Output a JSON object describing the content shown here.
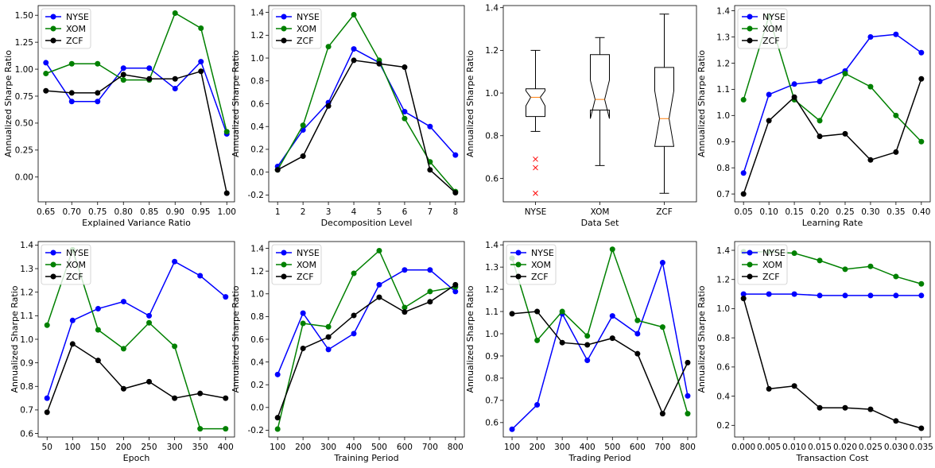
{
  "colors": {
    "NYSE": "#0000ff",
    "XOM": "#008000",
    "ZCF": "#000000",
    "outlier": "#ff0000",
    "median": "#ff7f0e"
  },
  "chart_data": [
    {
      "type": "line",
      "xlabel": "Explained Variance Ratio",
      "ylabel": "Annualized Sharpe Ratio",
      "x": [
        0.65,
        0.7,
        0.75,
        0.8,
        0.85,
        0.9,
        0.95,
        1.0
      ],
      "xticks": [
        "0.65",
        "0.70",
        "0.75",
        "0.80",
        "0.85",
        "0.90",
        "0.95",
        "1.00"
      ],
      "xlim": [
        0.635,
        1.015
      ],
      "ylim": [
        -0.23,
        1.59
      ],
      "yticks": [
        "0.00",
        "0.25",
        "0.50",
        "0.75",
        "1.00",
        "1.25",
        "1.50"
      ],
      "ytick_values": [
        0,
        0.25,
        0.5,
        0.75,
        1.0,
        1.25,
        1.5
      ],
      "legend": [
        "NYSE",
        "XOM",
        "ZCF"
      ],
      "series": [
        {
          "name": "NYSE",
          "values": [
            1.06,
            0.7,
            0.7,
            1.01,
            1.01,
            0.82,
            1.07,
            0.4
          ]
        },
        {
          "name": "XOM",
          "values": [
            0.96,
            1.05,
            1.05,
            0.9,
            0.9,
            1.52,
            1.38,
            0.42
          ]
        },
        {
          "name": "ZCF",
          "values": [
            0.8,
            0.78,
            0.78,
            0.95,
            0.91,
            0.91,
            0.98,
            -0.15
          ]
        }
      ]
    },
    {
      "type": "line",
      "xlabel": "Decomposition Level",
      "ylabel": "Annualized Sharpe Ratio",
      "x": [
        1,
        2,
        3,
        4,
        5,
        6,
        7,
        8
      ],
      "xticks": [
        "1",
        "2",
        "3",
        "4",
        "5",
        "6",
        "7",
        "8"
      ],
      "xlim": [
        0.65,
        8.35
      ],
      "ylim": [
        -0.26,
        1.46
      ],
      "yticks": [
        "-0.2",
        "0.0",
        "0.2",
        "0.4",
        "0.6",
        "0.8",
        "1.0",
        "1.2",
        "1.4"
      ],
      "ytick_values": [
        -0.2,
        0,
        0.2,
        0.4,
        0.6,
        0.8,
        1.0,
        1.2,
        1.4
      ],
      "legend": [
        "NYSE",
        "XOM",
        "ZCF"
      ],
      "series": [
        {
          "name": "NYSE",
          "values": [
            0.05,
            0.37,
            0.61,
            1.08,
            0.96,
            0.53,
            0.4,
            0.15
          ]
        },
        {
          "name": "XOM",
          "values": [
            0.02,
            0.41,
            1.1,
            1.38,
            0.98,
            0.47,
            0.09,
            -0.17
          ]
        },
        {
          "name": "ZCF",
          "values": [
            0.02,
            0.14,
            0.58,
            0.98,
            0.95,
            0.92,
            0.02,
            -0.18
          ]
        }
      ]
    },
    {
      "type": "box",
      "xlabel": "Data Set",
      "ylabel": "Annualized Sharpe Ratio",
      "categories": [
        "NYSE",
        "XOM",
        "ZCF"
      ],
      "xlim": [
        0.5,
        3.5
      ],
      "ylim": [
        0.49,
        1.41
      ],
      "yticks": [
        "0.6",
        "0.8",
        "1.0",
        "1.2",
        "1.4"
      ],
      "ytick_values": [
        0.6,
        0.8,
        1.0,
        1.2,
        1.4
      ],
      "boxes": [
        {
          "name": "NYSE",
          "whisker_low": 0.82,
          "q1": 0.89,
          "median": 0.98,
          "q3": 1.02,
          "whisker_high": 1.2,
          "notch_low": 0.94,
          "notch_high": 1.01,
          "outliers": [
            0.69,
            0.65,
            0.53
          ]
        },
        {
          "name": "XOM",
          "whisker_low": 0.66,
          "q1": 0.92,
          "median": 0.97,
          "q3": 1.18,
          "whisker_high": 1.26,
          "notch_low": 0.88,
          "notch_high": 1.06,
          "outliers": []
        },
        {
          "name": "ZCF",
          "whisker_low": 0.53,
          "q1": 0.75,
          "median": 0.88,
          "q3": 1.12,
          "whisker_high": 1.37,
          "notch_low": 0.75,
          "notch_high": 1.01,
          "outliers": []
        }
      ]
    },
    {
      "type": "line",
      "xlabel": "Learning Rate",
      "ylabel": "Annualized Sharpe Ratio",
      "x": [
        0.05,
        0.1,
        0.15,
        0.2,
        0.25,
        0.3,
        0.35,
        0.4
      ],
      "xticks": [
        "0.05",
        "0.10",
        "0.15",
        "0.20",
        "0.25",
        "0.30",
        "0.35",
        "0.40"
      ],
      "xlim": [
        0.0325,
        0.4175
      ],
      "ylim": [
        0.67,
        1.42
      ],
      "yticks": [
        "0.7",
        "0.8",
        "0.9",
        "1.0",
        "1.1",
        "1.2",
        "1.3",
        "1.4"
      ],
      "ytick_values": [
        0.7,
        0.8,
        0.9,
        1.0,
        1.1,
        1.2,
        1.3,
        1.4
      ],
      "legend": [
        "NYSE",
        "XOM",
        "ZCF"
      ],
      "series": [
        {
          "name": "NYSE",
          "values": [
            0.78,
            1.08,
            1.12,
            1.13,
            1.17,
            1.3,
            1.31,
            1.24
          ]
        },
        {
          "name": "XOM",
          "values": [
            1.06,
            1.38,
            1.06,
            0.98,
            1.16,
            1.11,
            1.0,
            0.9
          ]
        },
        {
          "name": "ZCF",
          "values": [
            0.7,
            0.98,
            1.07,
            0.92,
            0.93,
            0.83,
            0.86,
            1.14
          ]
        }
      ]
    },
    {
      "type": "line",
      "xlabel": "Epoch",
      "ylabel": "Annualized Sharpe Ratio",
      "x": [
        50,
        100,
        150,
        200,
        250,
        300,
        350,
        400
      ],
      "xticks": [
        "50",
        "100",
        "150",
        "200",
        "250",
        "300",
        "350",
        "400"
      ],
      "xlim": [
        32.5,
        417.5
      ],
      "ylim": [
        0.585,
        1.415
      ],
      "yticks": [
        "0.6",
        "0.7",
        "0.8",
        "0.9",
        "1.0",
        "1.1",
        "1.2",
        "1.3",
        "1.4"
      ],
      "ytick_values": [
        0.6,
        0.7,
        0.8,
        0.9,
        1.0,
        1.1,
        1.2,
        1.3,
        1.4
      ],
      "legend": [
        "NYSE",
        "XOM",
        "ZCF"
      ],
      "series": [
        {
          "name": "NYSE",
          "values": [
            0.75,
            1.08,
            1.13,
            1.16,
            1.1,
            1.33,
            1.27,
            1.18
          ]
        },
        {
          "name": "XOM",
          "values": [
            1.06,
            1.38,
            1.04,
            0.96,
            1.07,
            0.97,
            0.62,
            0.62
          ]
        },
        {
          "name": "ZCF",
          "values": [
            0.69,
            0.98,
            0.91,
            0.79,
            0.82,
            0.75,
            0.77,
            0.75
          ]
        }
      ]
    },
    {
      "type": "line",
      "xlabel": "Training Period",
      "ylabel": "Annualized Sharpe Ratio",
      "x": [
        100,
        200,
        300,
        400,
        500,
        600,
        700,
        800
      ],
      "xticks": [
        "100",
        "200",
        "300",
        "400",
        "500",
        "600",
        "700",
        "800"
      ],
      "xlim": [
        65,
        835
      ],
      "ylim": [
        -0.26,
        1.46
      ],
      "yticks": [
        "-0.2",
        "0.0",
        "0.2",
        "0.4",
        "0.6",
        "0.8",
        "1.0",
        "1.2",
        "1.4"
      ],
      "ytick_values": [
        -0.2,
        0,
        0.2,
        0.4,
        0.6,
        0.8,
        1.0,
        1.2,
        1.4
      ],
      "legend": [
        "NYSE",
        "XOM",
        "ZCF"
      ],
      "series": [
        {
          "name": "NYSE",
          "values": [
            0.29,
            0.83,
            0.51,
            0.65,
            1.08,
            1.21,
            1.21,
            1.02
          ]
        },
        {
          "name": "XOM",
          "values": [
            -0.19,
            0.74,
            0.71,
            1.18,
            1.38,
            0.88,
            1.02,
            1.06
          ]
        },
        {
          "name": "ZCF",
          "values": [
            -0.09,
            0.52,
            0.62,
            0.81,
            0.97,
            0.84,
            0.93,
            1.08
          ]
        }
      ]
    },
    {
      "type": "line",
      "xlabel": "Trading Period",
      "ylabel": "Annualized Sharpe Ratio",
      "x": [
        100,
        200,
        300,
        400,
        500,
        600,
        700,
        800
      ],
      "xticks": [
        "100",
        "200",
        "300",
        "400",
        "500",
        "600",
        "700",
        "800"
      ],
      "xlim": [
        65,
        835
      ],
      "ylim": [
        0.535,
        1.415
      ],
      "yticks": [
        "0.6",
        "0.7",
        "0.8",
        "0.9",
        "1.0",
        "1.1",
        "1.2",
        "1.3",
        "1.4"
      ],
      "ytick_values": [
        0.6,
        0.7,
        0.8,
        0.9,
        1.0,
        1.1,
        1.2,
        1.3,
        1.4
      ],
      "legend": [
        "NYSE",
        "XOM",
        "ZCF"
      ],
      "series": [
        {
          "name": "NYSE",
          "values": [
            0.57,
            0.68,
            1.09,
            0.88,
            1.08,
            1.0,
            1.32,
            0.72
          ]
        },
        {
          "name": "XOM",
          "values": [
            1.34,
            0.97,
            1.1,
            0.99,
            1.38,
            1.06,
            1.03,
            0.64
          ]
        },
        {
          "name": "ZCF",
          "values": [
            1.09,
            1.1,
            0.96,
            0.95,
            0.98,
            0.91,
            0.64,
            0.87
          ]
        }
      ]
    },
    {
      "type": "line",
      "xlabel": "Transaction Cost",
      "ylabel": "Annualized Sharpe Ratio",
      "x": [
        0.0,
        0.005,
        0.01,
        0.015,
        0.02,
        0.025,
        0.03,
        0.035
      ],
      "xticks": [
        "0.000",
        "0.005",
        "0.010",
        "0.015",
        "0.020",
        "0.025",
        "0.030",
        "0.035"
      ],
      "xlim": [
        -0.00175,
        0.03675
      ],
      "ylim": [
        0.12,
        1.46
      ],
      "yticks": [
        "0.2",
        "0.4",
        "0.6",
        "0.8",
        "1.0",
        "1.2",
        "1.4"
      ],
      "ytick_values": [
        0.2,
        0.4,
        0.6,
        0.8,
        1.0,
        1.2,
        1.4
      ],
      "legend": [
        "NYSE",
        "XOM",
        "ZCF"
      ],
      "series": [
        {
          "name": "NYSE",
          "values": [
            1.1,
            1.1,
            1.1,
            1.09,
            1.09,
            1.09,
            1.09,
            1.09
          ]
        },
        {
          "name": "XOM",
          "values": [
            1.39,
            1.39,
            1.38,
            1.33,
            1.27,
            1.29,
            1.22,
            1.17
          ]
        },
        {
          "name": "ZCF",
          "values": [
            1.07,
            0.45,
            0.47,
            0.32,
            0.32,
            0.31,
            0.23,
            0.18
          ]
        }
      ]
    }
  ]
}
